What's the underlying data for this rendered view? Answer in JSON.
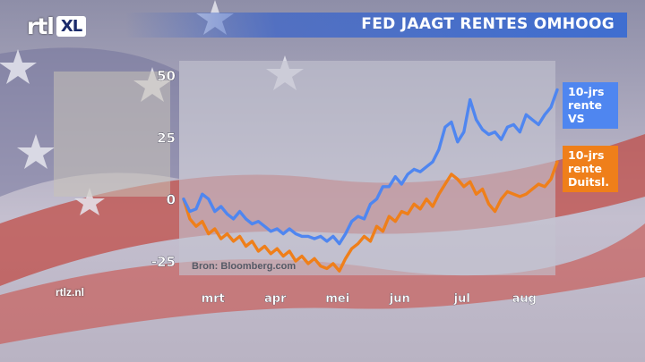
{
  "brand": {
    "logo_rtl": "rtl",
    "logo_xl": "XL",
    "site": "rtlz.nl"
  },
  "header": {
    "title": "FED JAAGT RENTES OMHOOG"
  },
  "colors": {
    "us": "#4f86f0",
    "de": "#ef7f1a",
    "panel": "#c4c3d0",
    "title_bar": "#3f6ed0"
  },
  "chart_data": {
    "type": "line",
    "title": "FED JAAGT RENTES OMHOOG",
    "source": "Bron: Bloomberg.com",
    "x_labels": [
      "mrt",
      "apr",
      "mei",
      "jun",
      "jul",
      "aug"
    ],
    "x_label_positions": [
      1,
      3,
      5,
      7,
      9,
      11
    ],
    "xlim": [
      0,
      12
    ],
    "ylim": [
      -30,
      55
    ],
    "yticks": [
      50,
      25,
      0,
      -25
    ],
    "ytick_labels": [
      "50",
      "25",
      "0",
      "-25"
    ],
    "grid": false,
    "legend_position": "right",
    "series": [
      {
        "name": "10-jrs rente VS",
        "legend_lines": [
          "10-jrs",
          "rente",
          "VS"
        ],
        "points": [
          [
            0,
            0
          ],
          [
            0.2,
            -5
          ],
          [
            0.4,
            -4
          ],
          [
            0.6,
            2
          ],
          [
            0.8,
            0
          ],
          [
            1.0,
            -5
          ],
          [
            1.2,
            -3
          ],
          [
            1.4,
            -6
          ],
          [
            1.6,
            -8
          ],
          [
            1.8,
            -5
          ],
          [
            2.0,
            -8
          ],
          [
            2.2,
            -10
          ],
          [
            2.4,
            -9
          ],
          [
            2.6,
            -11
          ],
          [
            2.8,
            -13
          ],
          [
            3.0,
            -12
          ],
          [
            3.2,
            -14
          ],
          [
            3.4,
            -12
          ],
          [
            3.6,
            -14
          ],
          [
            3.8,
            -15
          ],
          [
            4.0,
            -15
          ],
          [
            4.2,
            -16
          ],
          [
            4.4,
            -15
          ],
          [
            4.6,
            -17
          ],
          [
            4.8,
            -15
          ],
          [
            5.0,
            -18
          ],
          [
            5.2,
            -14
          ],
          [
            5.4,
            -9
          ],
          [
            5.6,
            -7
          ],
          [
            5.8,
            -8
          ],
          [
            6.0,
            -2
          ],
          [
            6.2,
            0
          ],
          [
            6.4,
            5
          ],
          [
            6.6,
            5
          ],
          [
            6.8,
            9
          ],
          [
            7.0,
            6
          ],
          [
            7.2,
            10
          ],
          [
            7.4,
            12
          ],
          [
            7.6,
            11
          ],
          [
            7.8,
            13
          ],
          [
            8.0,
            15
          ],
          [
            8.2,
            20
          ],
          [
            8.4,
            29
          ],
          [
            8.6,
            31
          ],
          [
            8.8,
            23
          ],
          [
            9.0,
            27
          ],
          [
            9.2,
            40
          ],
          [
            9.4,
            32
          ],
          [
            9.6,
            28
          ],
          [
            9.8,
            26
          ],
          [
            10.0,
            27
          ],
          [
            10.2,
            24
          ],
          [
            10.4,
            29
          ],
          [
            10.6,
            30
          ],
          [
            10.8,
            27
          ],
          [
            11.0,
            34
          ],
          [
            11.2,
            32
          ],
          [
            11.4,
            30
          ],
          [
            11.6,
            34
          ],
          [
            11.8,
            37
          ],
          [
            12.0,
            44
          ]
        ]
      },
      {
        "name": "10-jrs rente Duitsl.",
        "legend_lines": [
          "10-jrs",
          "rente",
          "Duitsl."
        ],
        "points": [
          [
            0,
            0
          ],
          [
            0.2,
            -8
          ],
          [
            0.4,
            -11
          ],
          [
            0.6,
            -9
          ],
          [
            0.8,
            -14
          ],
          [
            1.0,
            -12
          ],
          [
            1.2,
            -16
          ],
          [
            1.4,
            -14
          ],
          [
            1.6,
            -17
          ],
          [
            1.8,
            -15
          ],
          [
            2.0,
            -19
          ],
          [
            2.2,
            -17
          ],
          [
            2.4,
            -21
          ],
          [
            2.6,
            -19
          ],
          [
            2.8,
            -22
          ],
          [
            3.0,
            -20
          ],
          [
            3.2,
            -23
          ],
          [
            3.4,
            -21
          ],
          [
            3.6,
            -25
          ],
          [
            3.8,
            -23
          ],
          [
            4.0,
            -26
          ],
          [
            4.2,
            -24
          ],
          [
            4.4,
            -27
          ],
          [
            4.6,
            -28
          ],
          [
            4.8,
            -26
          ],
          [
            5.0,
            -29
          ],
          [
            5.2,
            -24
          ],
          [
            5.4,
            -20
          ],
          [
            5.6,
            -18
          ],
          [
            5.8,
            -15
          ],
          [
            6.0,
            -17
          ],
          [
            6.2,
            -11
          ],
          [
            6.4,
            -13
          ],
          [
            6.6,
            -7
          ],
          [
            6.8,
            -9
          ],
          [
            7.0,
            -5
          ],
          [
            7.2,
            -6
          ],
          [
            7.4,
            -2
          ],
          [
            7.6,
            -4
          ],
          [
            7.8,
            0
          ],
          [
            8.0,
            -3
          ],
          [
            8.2,
            2
          ],
          [
            8.4,
            6
          ],
          [
            8.6,
            10
          ],
          [
            8.8,
            8
          ],
          [
            9.0,
            5
          ],
          [
            9.2,
            7
          ],
          [
            9.4,
            2
          ],
          [
            9.6,
            4
          ],
          [
            9.8,
            -2
          ],
          [
            10.0,
            -5
          ],
          [
            10.2,
            0
          ],
          [
            10.4,
            3
          ],
          [
            10.6,
            2
          ],
          [
            10.8,
            1
          ],
          [
            11.0,
            2
          ],
          [
            11.2,
            4
          ],
          [
            11.4,
            6
          ],
          [
            11.6,
            5
          ],
          [
            11.8,
            8
          ],
          [
            12.0,
            15
          ]
        ]
      }
    ]
  }
}
